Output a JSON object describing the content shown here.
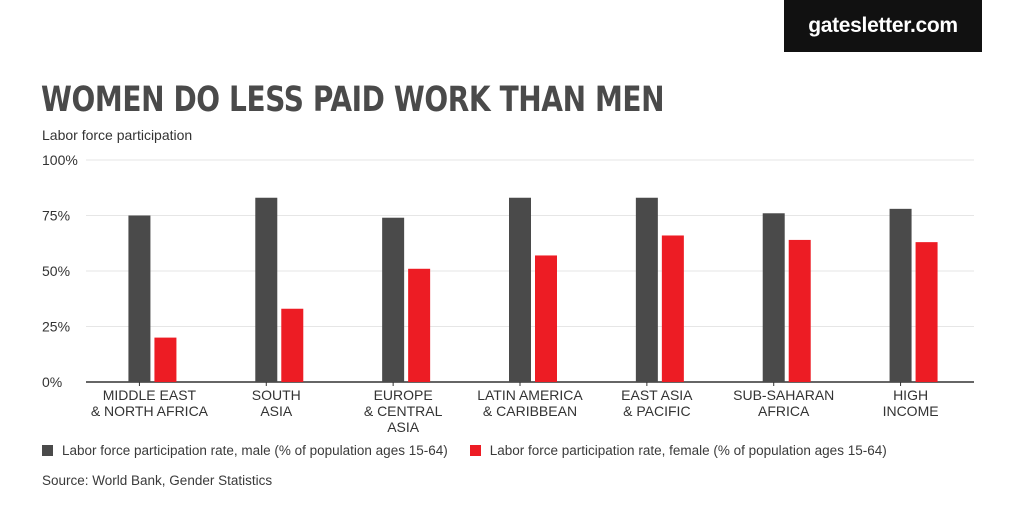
{
  "brand": "gatesletter.com",
  "header": {
    "title": "WOMEN DO LESS PAID WORK THAN MEN",
    "subtitle": "Labor force participation"
  },
  "colors": {
    "male": "#4a4a4a",
    "female": "#ed1c24",
    "grid": "#e6e6e6",
    "axis": "#333333"
  },
  "legend": {
    "male": "Labor force participation rate, male (% of population ages 15-64)",
    "female": "Labor force participation rate, female (% of population ages 15-64)"
  },
  "source": "Source: World Bank, Gender Statistics",
  "chart_data": {
    "type": "bar",
    "title": "WOMEN DO LESS PAID WORK THAN MEN",
    "ylabel": "Labor force participation",
    "ylim": [
      0,
      100
    ],
    "yticks": [
      0,
      25,
      50,
      75,
      100
    ],
    "ytick_labels": [
      "0%",
      "25%",
      "50%",
      "75%",
      "100%"
    ],
    "categories": [
      [
        "MIDDLE EAST",
        "& NORTH AFRICA"
      ],
      [
        "SOUTH",
        "ASIA"
      ],
      [
        "EUROPE",
        "& CENTRAL",
        "ASIA"
      ],
      [
        "LATIN AMERICA",
        "& CARIBBEAN"
      ],
      [
        "EAST ASIA",
        "& PACIFIC"
      ],
      [
        "SUB-SAHARAN",
        "AFRICA"
      ],
      [
        "HIGH",
        "INCOME"
      ]
    ],
    "series": [
      {
        "name": "Labor force participation rate, male (% of population ages 15-64)",
        "values": [
          75,
          83,
          74,
          83,
          83,
          76,
          78
        ]
      },
      {
        "name": "Labor force participation rate, female (% of population ages 15-64)",
        "values": [
          20,
          33,
          51,
          57,
          66,
          64,
          63
        ]
      }
    ],
    "grid": true,
    "legend_position": "bottom"
  }
}
